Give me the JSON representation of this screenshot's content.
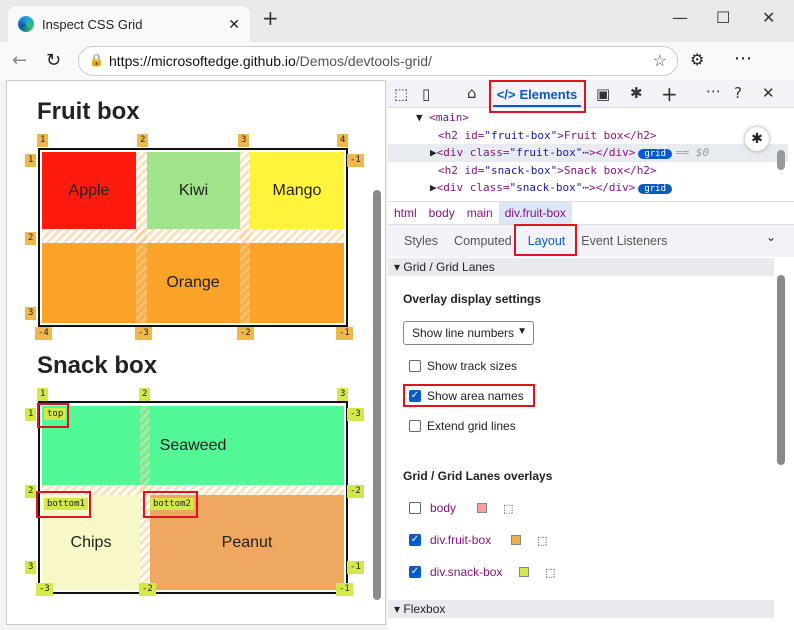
{
  "browser": {
    "tab_title": "Inspect CSS Grid",
    "url_host": "https://microsoftedge.github.io",
    "url_path": "/Demos/devtools-grid/"
  },
  "page": {
    "fruit": {
      "title": "Fruit box",
      "cells": [
        {
          "name": "Apple",
          "color": "#ff1a10"
        },
        {
          "name": "Kiwi",
          "color": "#a1e38a"
        },
        {
          "name": "Mango",
          "color": "#fff43a"
        },
        {
          "name": "Orange",
          "color": "#fba229"
        }
      ],
      "top_labels": [
        "1",
        "2",
        "3",
        "4"
      ],
      "left_labels": [
        "1",
        "2",
        "3"
      ],
      "right_labels": [
        "-1"
      ],
      "bottom_labels": [
        "-4",
        "-3",
        "-2",
        "-1"
      ],
      "label_color": "#f0b84a"
    },
    "snack": {
      "title": "Snack box",
      "cells": [
        {
          "name": "Seaweed",
          "color": "#52f895"
        },
        {
          "name": "Chips",
          "color": "#f7f7c8"
        },
        {
          "name": "Peanut",
          "color": "#eea85f"
        }
      ],
      "area_names": [
        "top",
        "bottom1",
        "bottom2"
      ],
      "top_labels": [
        "1",
        "2",
        "3"
      ],
      "left_labels": [
        "1",
        "2",
        "3"
      ],
      "right_labels": [
        "-3",
        "-2",
        "-1"
      ],
      "bottom_labels": [
        "-3",
        "-2",
        "-1"
      ],
      "label_color": "#d4e84a"
    }
  },
  "devtools": {
    "tabs": {
      "elements": "Elements"
    },
    "dom": [
      {
        "tag": "<main>"
      },
      {
        "open": "<h2 id=",
        "val": "\"fruit-box\"",
        "text": ">Fruit box</h2>"
      },
      {
        "open": "<div class=",
        "val": "\"fruit-box\"",
        "close": "></div>",
        "badge": "grid",
        "suffix": "== $0"
      },
      {
        "open": "<h2 id=",
        "val": "\"snack-box\"",
        "text": ">Snack box</h2>"
      },
      {
        "open": "<div class=",
        "val": "\"snack-box\"",
        "close": "></div>",
        "badge": "grid"
      }
    ],
    "breadcrumbs": [
      "html",
      "body",
      "main",
      "div.fruit-box"
    ],
    "subtabs": [
      "Styles",
      "Computed",
      "Layout",
      "Event Listeners"
    ],
    "layout": {
      "grid_section": "Grid / Grid Lanes",
      "overlay_settings": "Overlay display settings",
      "select_value": "Show line numbers",
      "checks": [
        {
          "label": "Show track sizes",
          "checked": false
        },
        {
          "label": "Show area names",
          "checked": true
        },
        {
          "label": "Extend grid lines",
          "checked": false
        }
      ],
      "overlays_title": "Grid / Grid Lanes overlays",
      "overlays": [
        {
          "label": "body",
          "checked": false,
          "color": "#f4a0a0"
        },
        {
          "label": "div.fruit-box",
          "checked": true,
          "color": "#e8b048"
        },
        {
          "label": "div.snack-box",
          "checked": true,
          "color": "#d4e84a"
        }
      ],
      "flexbox_section": "Flexbox"
    }
  }
}
